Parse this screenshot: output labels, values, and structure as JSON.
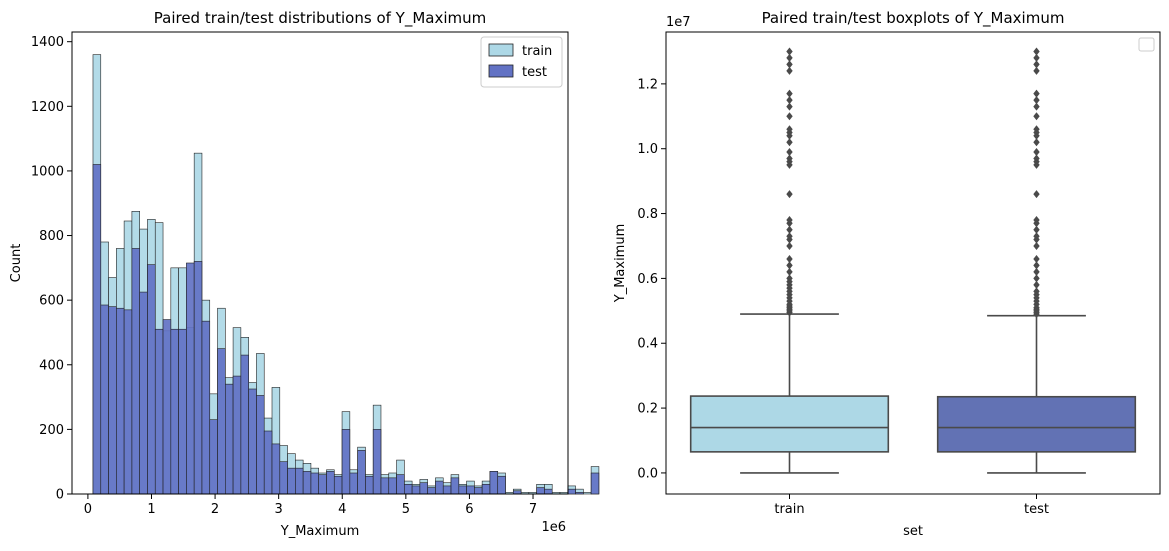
{
  "chart_data": [
    {
      "type": "bar",
      "title": "Paired train/test distributions of Y_Maximum",
      "xlabel": "Y_Maximum",
      "ylabel": "Count",
      "x_offset_label": "1e6",
      "xlim": [
        -0.25,
        7.55
      ],
      "ylim": [
        0,
        1430
      ],
      "xticks": [
        0,
        1,
        2,
        3,
        4,
        5,
        6,
        7
      ],
      "yticks": [
        0,
        200,
        400,
        600,
        800,
        1000,
        1200,
        1400
      ],
      "bin_start": 0.08,
      "bin_width": 0.1224,
      "legend_position": "upper right",
      "colors": {
        "train": "#add8e6",
        "test": "#6272c4",
        "edge": "#222222"
      },
      "series": [
        {
          "name": "train",
          "values": [
            1360,
            780,
            670,
            760,
            845,
            875,
            820,
            850,
            840,
            505,
            700,
            700,
            515,
            1055,
            600,
            310,
            575,
            360,
            515,
            485,
            345,
            435,
            235,
            330,
            150,
            125,
            105,
            95,
            80,
            65,
            75,
            60,
            255,
            75,
            145,
            60,
            275,
            60,
            65,
            105,
            40,
            30,
            45,
            25,
            50,
            35,
            60,
            30,
            40,
            25,
            40,
            70,
            65,
            5,
            15,
            5,
            5,
            30,
            30,
            5,
            5,
            25,
            15,
            5,
            85
          ]
        },
        {
          "name": "test",
          "values": [
            1020,
            585,
            580,
            575,
            570,
            760,
            625,
            710,
            510,
            540,
            510,
            510,
            715,
            720,
            535,
            230,
            450,
            340,
            365,
            430,
            325,
            305,
            195,
            155,
            100,
            80,
            80,
            70,
            65,
            60,
            70,
            55,
            200,
            65,
            135,
            55,
            200,
            50,
            50,
            60,
            30,
            25,
            35,
            20,
            40,
            25,
            50,
            25,
            25,
            20,
            30,
            70,
            55,
            0,
            10,
            0,
            0,
            20,
            15,
            0,
            0,
            15,
            5,
            0,
            65
          ]
        }
      ]
    },
    {
      "type": "box",
      "title": "Paired train/test boxplots of Y_Maximum",
      "xlabel": "set",
      "ylabel": "Y_Maximum",
      "y_offset_label": "1e7",
      "categories": [
        "train",
        "test"
      ],
      "ylim": [
        -0.065,
        1.36
      ],
      "yticks": [
        "0.0",
        "0.2",
        "0.4",
        "0.6",
        "0.8",
        "1.0",
        "1.2"
      ],
      "legend_position": "upper right",
      "boxes": [
        {
          "name": "train",
          "color": "#add8e6",
          "min": 0.0,
          "q1": 0.065,
          "median": 0.14,
          "q3": 0.237,
          "max": 0.49,
          "outliers": [
            0.495,
            0.5,
            0.505,
            0.51,
            0.515,
            0.52,
            0.53,
            0.54,
            0.55,
            0.56,
            0.57,
            0.58,
            0.59,
            0.6,
            0.62,
            0.64,
            0.66,
            0.7,
            0.72,
            0.73,
            0.75,
            0.77,
            0.78,
            0.86,
            0.95,
            0.96,
            0.97,
            0.99,
            1.02,
            1.04,
            1.05,
            1.06,
            1.1,
            1.13,
            1.15,
            1.17,
            1.24,
            1.26,
            1.28,
            1.3
          ]
        },
        {
          "name": "test",
          "color": "#6272b4",
          "min": 0.0,
          "q1": 0.065,
          "median": 0.14,
          "q3": 0.235,
          "max": 0.485,
          "outliers": [
            0.49,
            0.495,
            0.5,
            0.505,
            0.51,
            0.52,
            0.53,
            0.54,
            0.55,
            0.56,
            0.58,
            0.6,
            0.62,
            0.64,
            0.66,
            0.7,
            0.72,
            0.73,
            0.75,
            0.77,
            0.78,
            0.86,
            0.95,
            0.96,
            0.97,
            0.99,
            1.02,
            1.04,
            1.05,
            1.06,
            1.1,
            1.13,
            1.15,
            1.17,
            1.24,
            1.26,
            1.28,
            1.3
          ]
        }
      ]
    }
  ]
}
